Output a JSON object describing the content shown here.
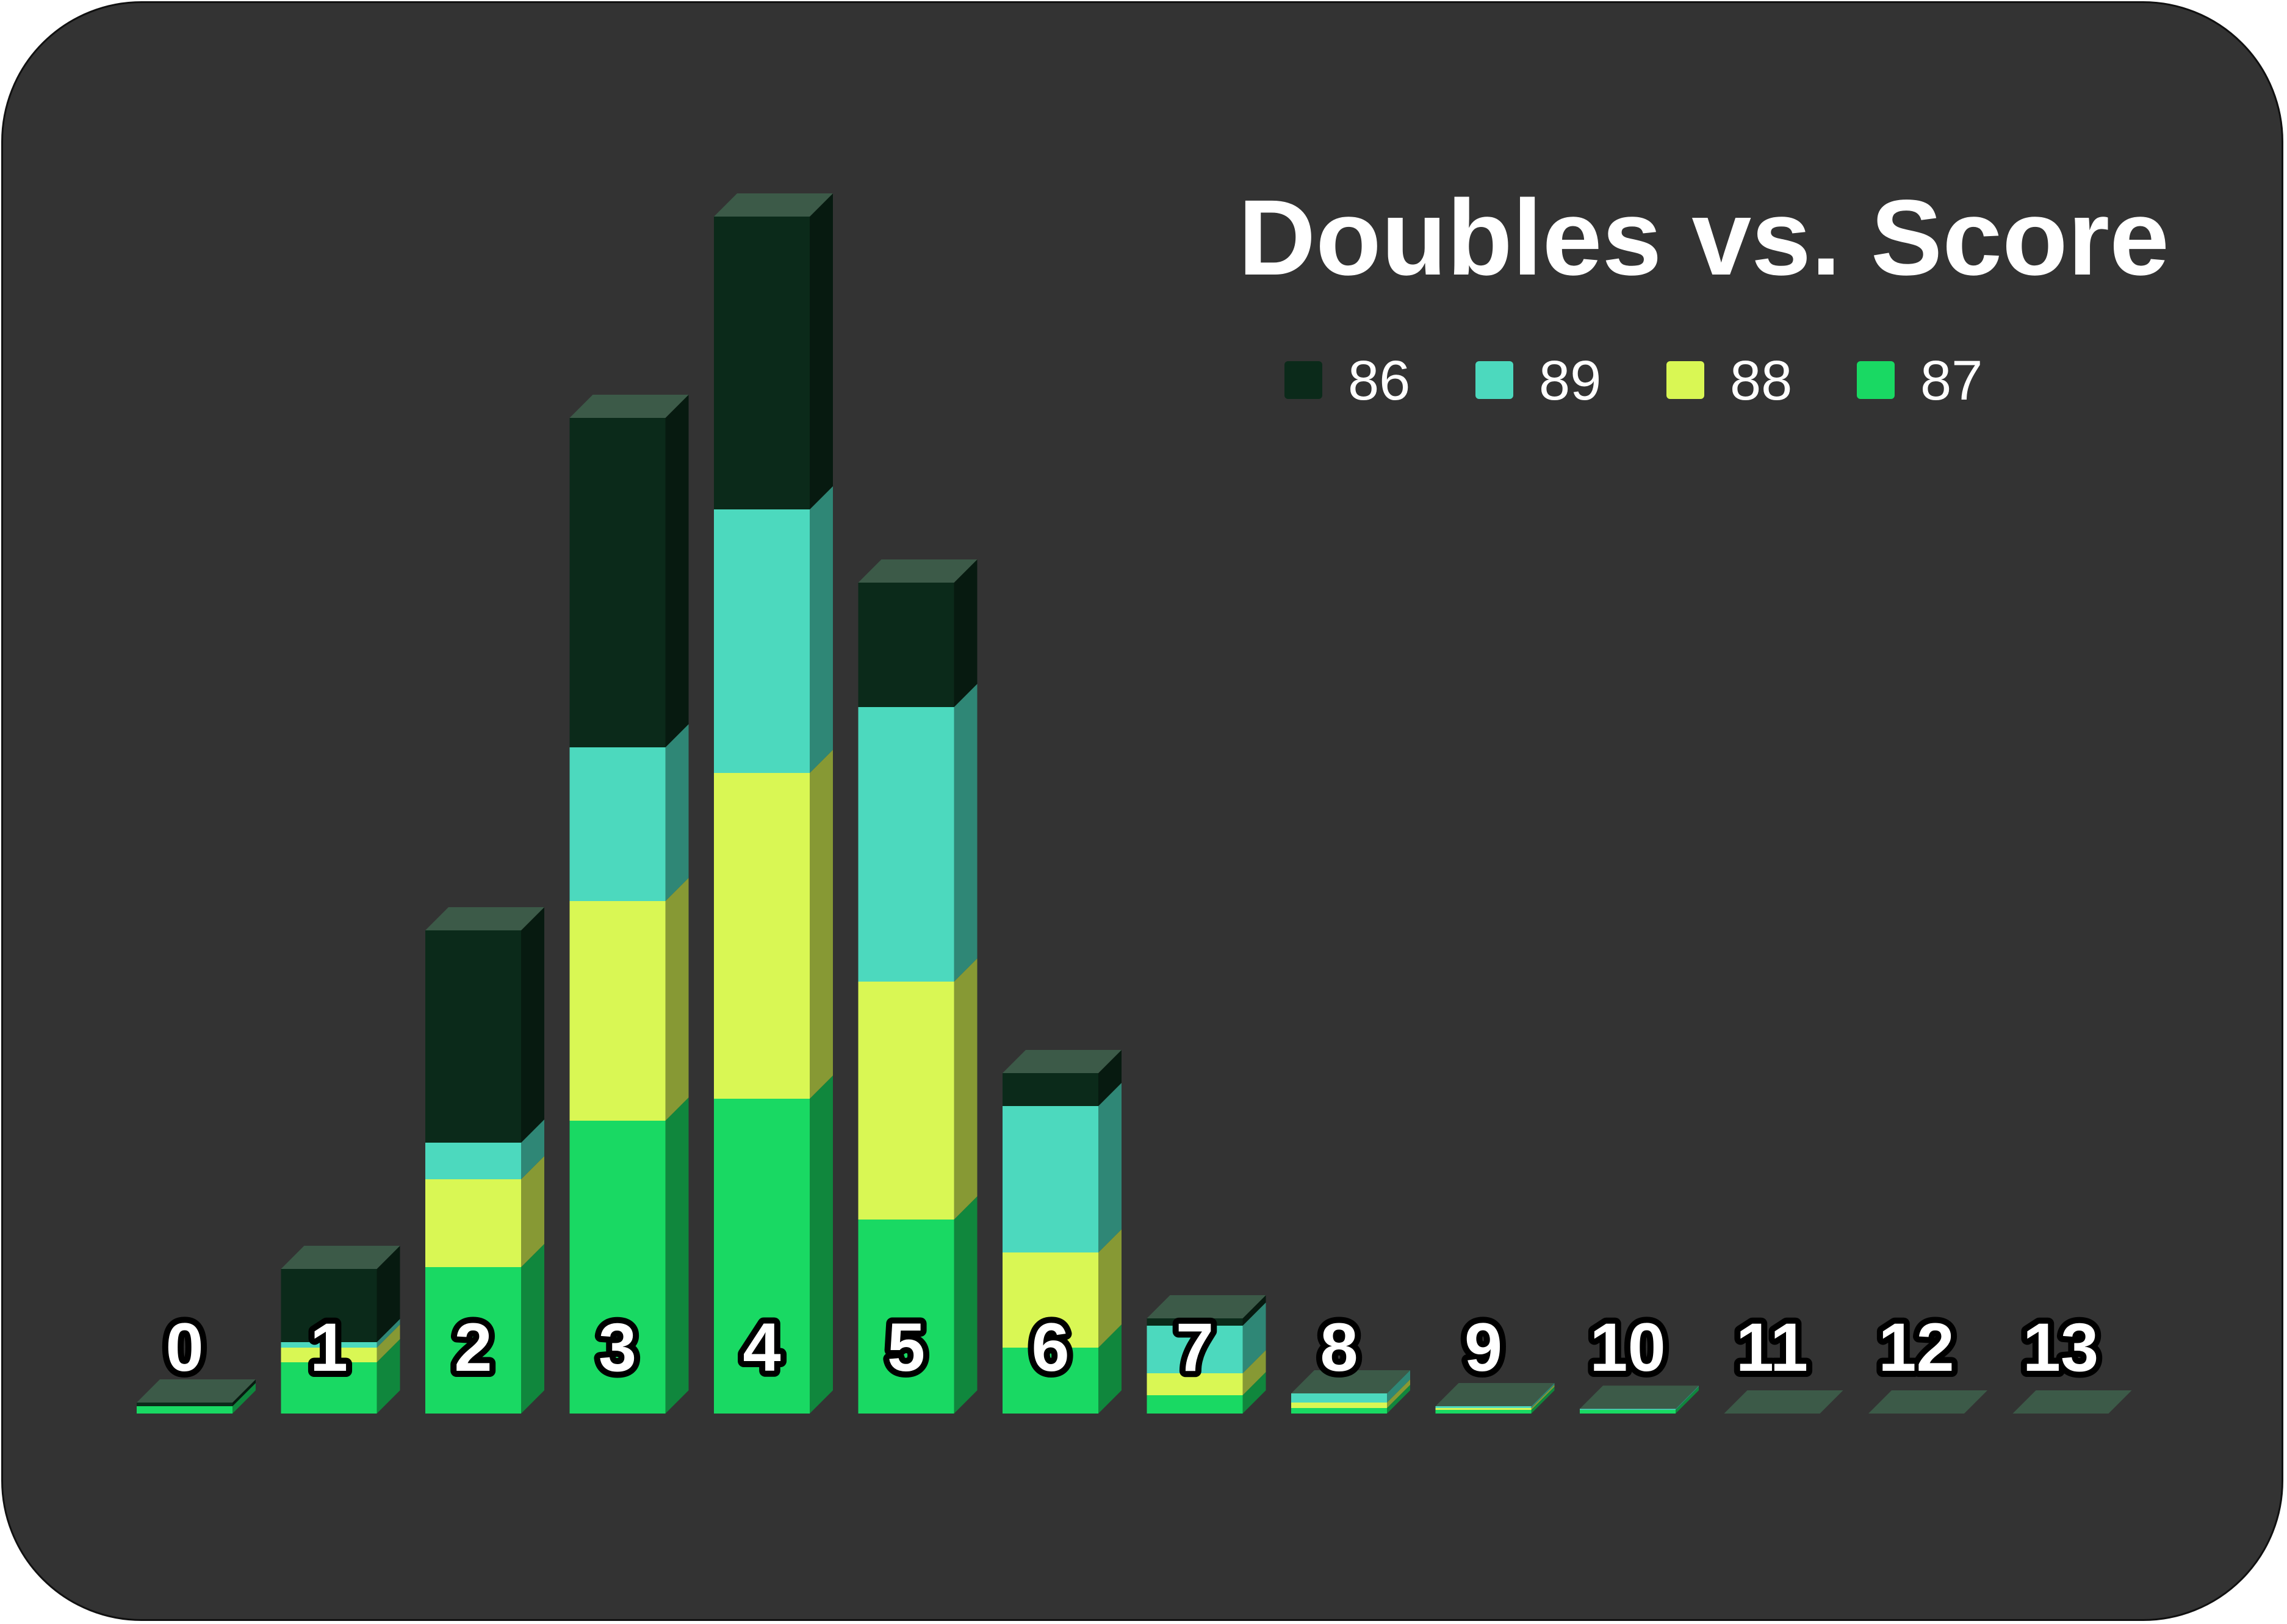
{
  "chart_data": {
    "type": "bar",
    "stacked": true,
    "title": "Doubles vs. Score",
    "categories": [
      "0",
      "1",
      "2",
      "3",
      "4",
      "5",
      "6",
      "7",
      "8",
      "9",
      "10",
      "11",
      "12",
      "13"
    ],
    "series": [
      {
        "name": "87",
        "color": "#19d963",
        "values": [
          0.2,
          1.4,
          4.0,
          8.0,
          8.6,
          5.3,
          1.8,
          0.5,
          0.15,
          0.1,
          0.1,
          0,
          0,
          0
        ]
      },
      {
        "name": "88",
        "color": "#d9f754",
        "values": [
          0,
          0.4,
          2.4,
          6.0,
          8.9,
          6.5,
          2.6,
          0.6,
          0.15,
          0.05,
          0,
          0,
          0,
          0
        ]
      },
      {
        "name": "89",
        "color": "#4cd9be",
        "values": [
          0,
          0.15,
          1.0,
          4.2,
          7.2,
          7.5,
          4.0,
          1.3,
          0.25,
          0.05,
          0.03,
          0,
          0,
          0
        ]
      },
      {
        "name": "86",
        "color": "#0b2a1a",
        "values": [
          0.1,
          2.0,
          5.8,
          9.0,
          8.0,
          3.4,
          0.9,
          0.2,
          0,
          0,
          0,
          0,
          0,
          0
        ]
      }
    ],
    "legend_order": [
      "86",
      "89",
      "88",
      "87"
    ],
    "ylim": [
      0,
      34
    ],
    "legend_position": "top-right",
    "grid": false,
    "style": "3d-stacked-bar",
    "background": "#333333",
    "top_color": "#3c5a48"
  }
}
